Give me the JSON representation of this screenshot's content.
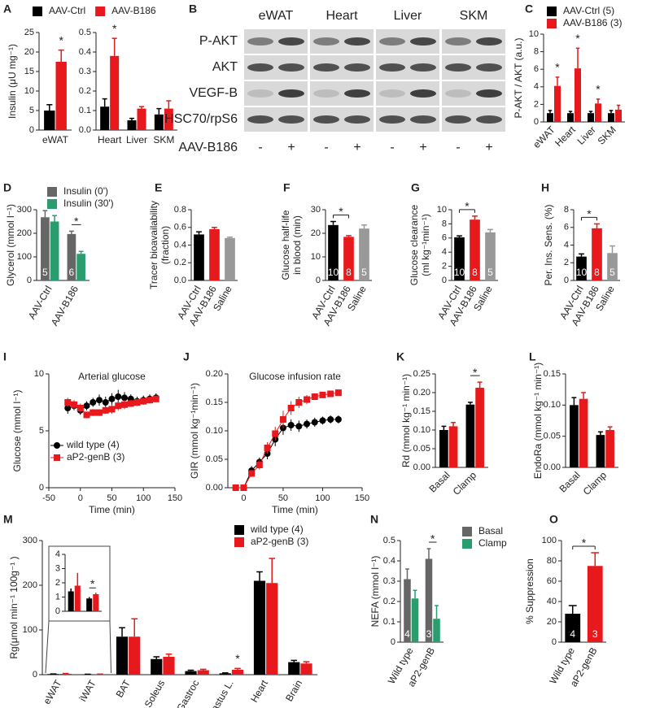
{
  "chart_data": [
    {
      "type": "bar",
      "panel": "A",
      "ylabel": "Insulin (μU mg⁻¹)",
      "categories": [
        "eWAT"
      ],
      "series": [
        {
          "name": "AAV-Ctrl",
          "color": "#000000",
          "values": [
            5
          ],
          "errors": [
            1.5
          ]
        },
        {
          "name": "AAV-B186",
          "color": "#e8191c",
          "values": [
            17.5
          ],
          "errors": [
            3
          ]
        }
      ],
      "stars": [
        "*"
      ],
      "ylim": [
        0,
        25
      ],
      "yticks": [
        0,
        5,
        10,
        15,
        20,
        25
      ]
    },
    {
      "type": "bar",
      "categories": [
        "Heart",
        "Liver",
        "SKM"
      ],
      "series": [
        {
          "color": "#000000",
          "values": [
            0.12,
            0.05,
            0.08
          ],
          "errors": [
            0.04,
            0.01,
            0.03
          ]
        },
        {
          "color": "#e8191c",
          "values": [
            0.38,
            0.11,
            0.11
          ],
          "errors": [
            0.09,
            0.01,
            0.04
          ]
        }
      ],
      "stars": [
        "*",
        null,
        null
      ],
      "ylim": [
        0,
        0.5
      ],
      "yticks": [
        {
          "value": 0,
          "label": "0.0"
        },
        0.1,
        0.2,
        0.3,
        0.4,
        0.5
      ]
    },
    {
      "type": "blot",
      "panel": "B",
      "columns": [
        "eWAT",
        "Heart",
        "Liver",
        "SKM"
      ],
      "rows": [
        "P-AKT",
        "AKT",
        "VEGF-B",
        "HSC70/rpS6"
      ],
      "treatment_label": "AAV-B186",
      "treatment": [
        "-",
        "+",
        "-",
        "+",
        "-",
        "+",
        "-",
        "+"
      ]
    },
    {
      "type": "bar",
      "panel": "C",
      "ylabel": "P-AKT / AKT (a.u.)",
      "categories": [
        "eWAT",
        "Heart",
        "Liver",
        "SKM"
      ],
      "series": [
        {
          "name": "AAV-Ctrl (5)",
          "color": "#000000",
          "values": [
            1,
            1,
            1,
            1
          ],
          "errors": [
            0.3,
            0.2,
            0.2,
            0.3
          ]
        },
        {
          "name": "AAV-B186 (3)",
          "color": "#e8191c",
          "values": [
            4.1,
            6.1,
            2.1,
            1.4
          ],
          "errors": [
            1,
            2.3,
            0.5,
            0.5
          ]
        }
      ],
      "stars": [
        "*",
        "*",
        "*",
        null
      ],
      "ylim": [
        0,
        10
      ],
      "yticks": [
        0,
        2,
        4,
        6,
        8,
        10
      ]
    },
    {
      "type": "bar",
      "panel": "D",
      "ylabel": "Glycerol (mmol l⁻¹)",
      "categories": [
        "AAV-Ctrl",
        "AAV-B186"
      ],
      "series": [
        {
          "name": "Insulin (0')",
          "color": "#666666",
          "values": [
            268,
            197
          ],
          "errors": [
            28,
            12
          ]
        },
        {
          "name": "Insulin (30')",
          "color": "#2a9d6e",
          "values": [
            250,
            113
          ],
          "errors": [
            25,
            10
          ]
        }
      ],
      "n_labels": [
        "5",
        "6"
      ],
      "stars": [
        null,
        "*"
      ],
      "ylim": [
        0,
        300
      ],
      "yticks": [
        0,
        100,
        200,
        300
      ]
    },
    {
      "type": "bar",
      "panel": "E",
      "ylabel": [
        "Tracer bioavailability",
        "(fraction)"
      ],
      "categories": [
        "AAV-Ctrl",
        "AAV-B186",
        "Saline"
      ],
      "values": [
        0.52,
        0.58,
        0.48
      ],
      "errors": [
        0.03,
        0.02,
        0.01
      ],
      "colors": [
        "#000000",
        "#e8191c",
        "#999999"
      ],
      "ylim": [
        0,
        0.8
      ],
      "yticks": [
        {
          "value": 0,
          "label": "0.0"
        },
        0.2,
        0.4,
        0.6,
        0.8
      ]
    },
    {
      "type": "bar",
      "panel": "F",
      "ylabel": [
        "Glucose half-life",
        "in blood (min)"
      ],
      "categories": [
        "AAV-Ctrl",
        "AAV-B186",
        "Saline"
      ],
      "values": [
        23.5,
        18.5,
        22
      ],
      "errors": [
        1.5,
        0.5,
        1.5
      ],
      "colors": [
        "#000000",
        "#e8191c",
        "#999999"
      ],
      "n_labels": [
        "10",
        "8",
        "5"
      ],
      "stars": [
        null,
        "*",
        null
      ],
      "ylim": [
        0,
        30
      ],
      "yticks": [
        0,
        10,
        20,
        30
      ]
    },
    {
      "type": "bar",
      "panel": "G",
      "ylabel": [
        "Glucose clearance",
        "(ml kg⁻¹min⁻¹)"
      ],
      "categories": [
        "AAV-Ctrl",
        "AAV-B186",
        "Saline"
      ],
      "values": [
        6.1,
        8.6,
        6.8
      ],
      "errors": [
        0.2,
        0.5,
        0.4
      ],
      "colors": [
        "#000000",
        "#e8191c",
        "#999999"
      ],
      "n_labels": [
        "10",
        "8",
        "5"
      ],
      "stars": [
        null,
        "*",
        null
      ],
      "ylim": [
        0,
        10
      ],
      "yticks": [
        0,
        2,
        4,
        6,
        8,
        10
      ]
    },
    {
      "type": "bar",
      "panel": "H",
      "ylabel": "Per. Ins. Sens. (%)",
      "categories": [
        "AAV-Ctrl",
        "AAV-B186",
        "Saline"
      ],
      "values": [
        2.7,
        5.9,
        3.1
      ],
      "errors": [
        0.3,
        0.5,
        0.8
      ],
      "colors": [
        "#000000",
        "#e8191c",
        "#999999"
      ],
      "n_labels": [
        "10",
        "8",
        "5"
      ],
      "stars": [
        null,
        "*",
        null
      ],
      "ylim": [
        0,
        8
      ],
      "yticks": [
        0,
        2,
        4,
        6,
        8
      ]
    },
    {
      "type": "line",
      "panel": "I",
      "title": "Arterial glucose",
      "ylabel": "Glucose (mmol l⁻¹)",
      "xlabel": "Time (min)",
      "x": [
        -20,
        -10,
        0,
        10,
        20,
        30,
        40,
        50,
        60,
        70,
        80,
        90,
        100,
        110,
        120
      ],
      "series": [
        {
          "name": "wild type (4)",
          "color": "#000000",
          "marker": "circle",
          "values": [
            7,
            7.2,
            6.8,
            7.2,
            7.5,
            7.7,
            7.5,
            7.8,
            8,
            7.9,
            7.8,
            7.6,
            7.7,
            7.8,
            7.9
          ],
          "errors": [
            0.5,
            0.4,
            0.4,
            0.4,
            0.4,
            0.5,
            0.5,
            0.5,
            0.6,
            0.5,
            0.4,
            0.4,
            0.4,
            0.4,
            0.4
          ]
        },
        {
          "name": "aP2-genB (3)",
          "color": "#e8191c",
          "marker": "square",
          "values": [
            7.5,
            7.3,
            7,
            6.4,
            6.6,
            6.6,
            6.8,
            6.9,
            7.2,
            7.3,
            7.4,
            7.5,
            7.6,
            7.7,
            7.8
          ],
          "errors": [
            0.4,
            0.4,
            0.4,
            0.3,
            0.3,
            0.3,
            0.3,
            0.4,
            0.4,
            0.4,
            0.3,
            0.3,
            0.3,
            0.3,
            0.3
          ]
        }
      ],
      "xlim": [
        -50,
        150
      ],
      "xticks": [
        -50,
        0,
        50,
        100,
        150
      ],
      "ylim": [
        0,
        10
      ],
      "yticks": [
        0,
        5,
        10
      ]
    },
    {
      "type": "line",
      "panel": "J",
      "title": "Glucose infusion rate",
      "ylabel": "GIR (mmol kg⁻¹min⁻¹)",
      "xlabel": "Time (min)",
      "x": [
        -10,
        0,
        10,
        20,
        30,
        40,
        50,
        60,
        70,
        80,
        90,
        100,
        110,
        120
      ],
      "series": [
        {
          "color": "#000000",
          "marker": "circle",
          "values": [
            0,
            0,
            0.03,
            0.045,
            0.06,
            0.085,
            0.105,
            0.11,
            0.108,
            0.112,
            0.115,
            0.118,
            0.12,
            0.12
          ],
          "errors": [
            0,
            0,
            0.008,
            0.008,
            0.01,
            0.012,
            0.012,
            0.01,
            0.01,
            0.008,
            0.008,
            0.007,
            0.007,
            0.007
          ]
        },
        {
          "color": "#e8191c",
          "marker": "square",
          "values": [
            0,
            0,
            0.025,
            0.04,
            0.07,
            0.095,
            0.12,
            0.14,
            0.15,
            0.155,
            0.16,
            0.163,
            0.165,
            0.167
          ],
          "errors": [
            0,
            0,
            0.006,
            0.008,
            0.01,
            0.012,
            0.015,
            0.012,
            0.01,
            0.008,
            0.006,
            0.005,
            0.005,
            0.005
          ]
        }
      ],
      "xlim": [
        -20,
        150
      ],
      "xticks": [
        0,
        50,
        100,
        150
      ],
      "ylim": [
        0,
        0.2
      ],
      "yticks": [
        {
          "value": 0,
          "label": "0.00"
        },
        0.05,
        {
          "value": 0.1,
          "label": "0.10"
        },
        0.15,
        {
          "value": 0.2,
          "label": "0.20"
        }
      ]
    },
    {
      "type": "bar",
      "panel": "K",
      "ylabel": "Rd (mmol kg⁻¹ min⁻¹)",
      "categories": [
        "Basal",
        "Clamp"
      ],
      "series": [
        {
          "color": "#000000",
          "values": [
            0.1,
            0.168
          ],
          "errors": [
            0.01,
            0.006
          ]
        },
        {
          "color": "#e8191c",
          "values": [
            0.11,
            0.213
          ],
          "errors": [
            0.01,
            0.015
          ]
        }
      ],
      "stars": [
        null,
        "*"
      ],
      "ylim": [
        0,
        0.25
      ],
      "yticks": [
        {
          "value": 0,
          "label": "0.00"
        },
        0.05,
        {
          "value": 0.1,
          "label": "0.10"
        },
        0.15,
        {
          "value": 0.2,
          "label": "0.20"
        },
        0.25
      ]
    },
    {
      "type": "bar",
      "panel": "L",
      "ylabel": "EndoRa (mmol kg⁻¹ min⁻¹)",
      "categories": [
        "Basal",
        "Clamp"
      ],
      "series": [
        {
          "color": "#000000",
          "values": [
            0.1,
            0.052
          ],
          "errors": [
            0.012,
            0.005
          ]
        },
        {
          "color": "#e8191c",
          "values": [
            0.11,
            0.06
          ],
          "errors": [
            0.01,
            0.005
          ]
        }
      ],
      "ylim": [
        0,
        0.15
      ],
      "yticks": [
        {
          "value": 0,
          "label": "0.00"
        },
        0.05,
        {
          "value": 0.1,
          "label": "0.10"
        },
        0.15
      ]
    },
    {
      "type": "bar",
      "panel": "M",
      "ylabel": "Rg(μmol min⁻¹ 100g⁻¹ )",
      "categories": [
        "eWAT",
        "iWAT",
        "BAT",
        "Soleus",
        "Gastroc",
        "Vastus L.",
        "Heart",
        "Brain"
      ],
      "series": [
        {
          "name": "wild type (4)",
          "color": "#000000",
          "values": [
            1.4,
            0.9,
            85,
            35,
            8,
            3,
            210,
            28
          ],
          "errors": [
            0.2,
            0.1,
            20,
            5,
            2,
            1,
            20,
            4
          ]
        },
        {
          "name": "aP2-genB (3)",
          "color": "#e8191c",
          "values": [
            1.8,
            1.2,
            85,
            40,
            10,
            11,
            205,
            25
          ],
          "errors": [
            0.9,
            0.1,
            40,
            6,
            2,
            3,
            55,
            4
          ]
        }
      ],
      "stars": [
        null,
        null,
        null,
        null,
        null,
        "*",
        null,
        null
      ],
      "ylim": [
        0,
        300
      ],
      "yticks": [
        0,
        100,
        200,
        300
      ],
      "inset": {
        "ylim": [
          0,
          4
        ],
        "yticks": [
          0,
          1,
          2,
          3,
          4
        ],
        "stars": [
          null,
          "*"
        ]
      }
    },
    {
      "type": "bar",
      "panel": "N",
      "ylabel": "NEFA (mmol l⁻¹)",
      "categories": [
        "Wild type",
        "aP2-genB"
      ],
      "series": [
        {
          "name": "Basal",
          "color": "#666666",
          "values": [
            0.31,
            0.41
          ],
          "errors": [
            0.05,
            0.05
          ]
        },
        {
          "name": "Clamp",
          "color": "#2a9d6e",
          "values": [
            0.215,
            0.115
          ],
          "errors": [
            0.04,
            0.065
          ]
        }
      ],
      "n_labels": [
        "4",
        "3"
      ],
      "stars": [
        null,
        "*"
      ],
      "ylim": [
        0,
        0.5
      ],
      "yticks": [
        0,
        0.1,
        0.2,
        0.3,
        0.4,
        0.5
      ]
    },
    {
      "type": "bar",
      "panel": "O",
      "ylabel": "% Suppression",
      "categories": [
        "Wild type",
        "aP2-genB"
      ],
      "values": [
        28,
        75
      ],
      "errors": [
        8,
        13
      ],
      "colors": [
        "#000000",
        "#e8191c"
      ],
      "n_labels": [
        "4",
        "3"
      ],
      "stars": [
        null,
        "*"
      ],
      "ylim": [
        0,
        100
      ],
      "yticks": [
        0,
        20,
        40,
        60,
        80,
        100
      ]
    }
  ]
}
